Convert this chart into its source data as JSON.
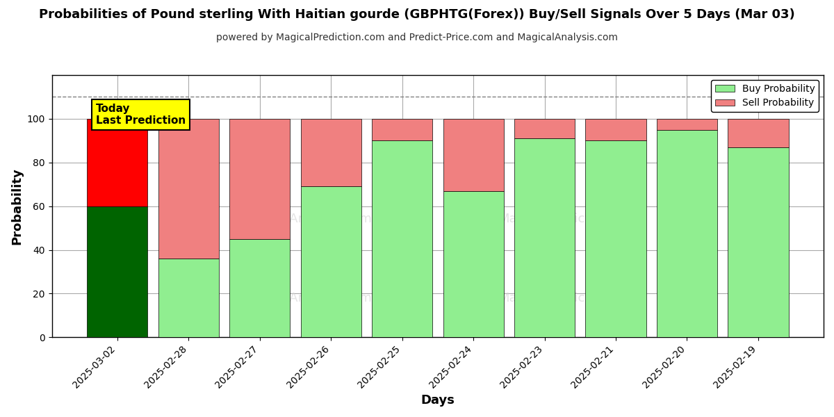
{
  "title": "Probabilities of Pound sterling With Haitian gourde (GBPHTG(Forex)) Buy/Sell Signals Over 5 Days (Mar 03)",
  "subtitle": "powered by MagicalPrediction.com and Predict-Price.com and MagicalAnalysis.com",
  "xlabel": "Days",
  "ylabel": "Probability",
  "dates": [
    "2025-03-02",
    "2025-02-28",
    "2025-02-27",
    "2025-02-26",
    "2025-02-25",
    "2025-02-24",
    "2025-02-23",
    "2025-02-21",
    "2025-02-20",
    "2025-02-19"
  ],
  "buy_values": [
    60,
    36,
    45,
    69,
    90,
    67,
    91,
    90,
    95,
    87
  ],
  "sell_values": [
    40,
    64,
    55,
    31,
    10,
    33,
    9,
    10,
    5,
    13
  ],
  "today_buy_color": "#006400",
  "today_sell_color": "#ff0000",
  "buy_color": "#90EE90",
  "sell_color": "#F08080",
  "today_label_bg": "#ffff00",
  "today_label_text": "Today\nLast Prediction",
  "legend_buy": "Buy Probability",
  "legend_sell": "Sell Probability",
  "ylim": [
    0,
    120
  ],
  "yticks": [
    0,
    20,
    40,
    60,
    80,
    100
  ],
  "dashed_line_y": 110,
  "background_color": "#ffffff",
  "grid_color": "#aaaaaa"
}
